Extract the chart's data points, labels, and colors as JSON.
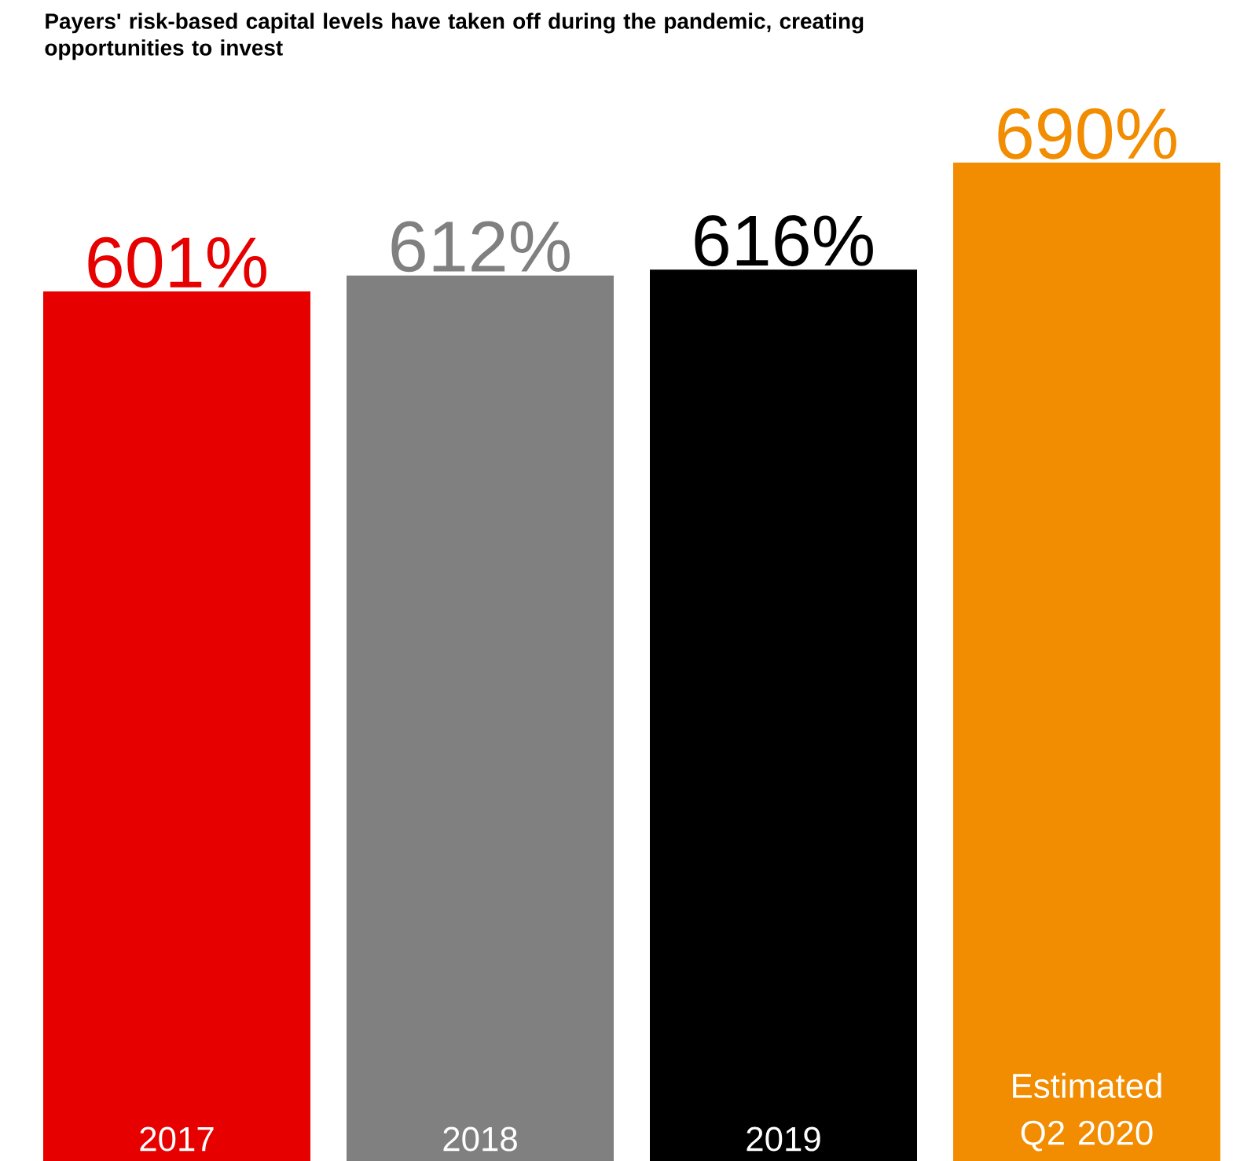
{
  "chart_data": {
    "type": "bar",
    "title": "Payers' risk-based capital levels have taken off during the pandemic, creating opportunities to invest",
    "categories": [
      "2017",
      "2018",
      "2019",
      "Estimated Q2 2020"
    ],
    "values": [
      601,
      612,
      616,
      690
    ],
    "value_labels": [
      "601%",
      "612%",
      "616%",
      "690%"
    ],
    "colors": [
      "#e60000",
      "#808080",
      "#000000",
      "#f28c00"
    ]
  }
}
